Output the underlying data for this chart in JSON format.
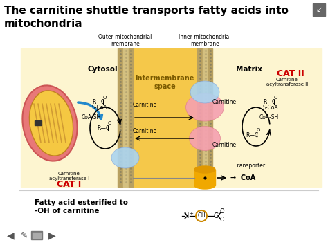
{
  "title": "The carnitine shuttle transports fatty acids into\nmitochondria",
  "bg_color": "#ffffff",
  "diagram_bg": "#fdf5d0",
  "intermembrane_bg": "#f5c84a",
  "membrane_color_dark": "#b8a060",
  "membrane_color_light": "#d4c080",
  "outer_mem_label": "Outer mitochondrial\nmembrane",
  "inner_mem_label": "Inner mitochondrial\nmembrane",
  "intermembrane_label": "Intermembrane\nspace",
  "cytosol_label": "Cytosol",
  "matrix_label": "Matrix",
  "cat1_label": "CAT I",
  "cat2_label": "CAT II",
  "cat1_color": "#cc0000",
  "cat2_color": "#cc0000",
  "cat1_sublabel": "Carnitine\nacyltransferase I",
  "cat2_sublabel": "Carnitine\nacyltransferase II",
  "bottom_text1": "Fatty acid esterified to",
  "bottom_text2": "-OH of carnitine",
  "mito_outer_color": "#e87878",
  "mito_inner_color": "#f5c842",
  "mito_crista_color": "#c89030",
  "blob_pink": "#f5a0b0",
  "blob_blue": "#aad4f0",
  "coa_gold": "#f0a800",
  "oh_circle_color": "#cc8800",
  "arrow_blue": "#2288cc"
}
